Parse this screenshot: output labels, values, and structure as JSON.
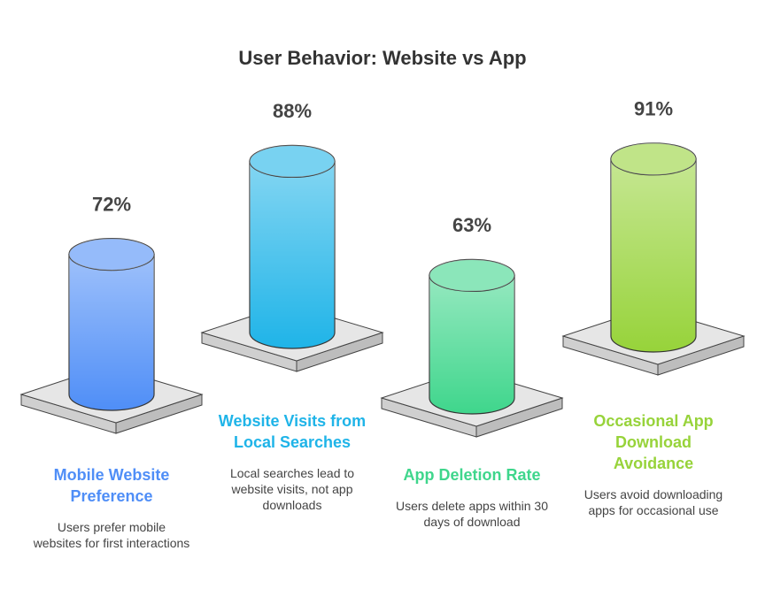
{
  "chart_data": {
    "type": "bar",
    "title": "User Behavior: Website vs App",
    "categories": [
      "Mobile Website Preference",
      "Website Visits from Local Searches",
      "App Deletion Rate",
      "Occasional App Download Avoidance"
    ],
    "values": [
      72,
      88,
      63,
      91
    ],
    "value_labels": [
      "72%",
      "88%",
      "63%",
      "91%"
    ],
    "descriptions": [
      "Users prefer mobile websites for first interactions",
      "Local searches lead to website visits, not app downloads",
      "Users delete apps within 30 days of download",
      "Users avoid downloading apps for occasional use"
    ],
    "colors": [
      "#4f8ef7",
      "#1fb4e8",
      "#3fd68c",
      "#97d33a"
    ]
  }
}
